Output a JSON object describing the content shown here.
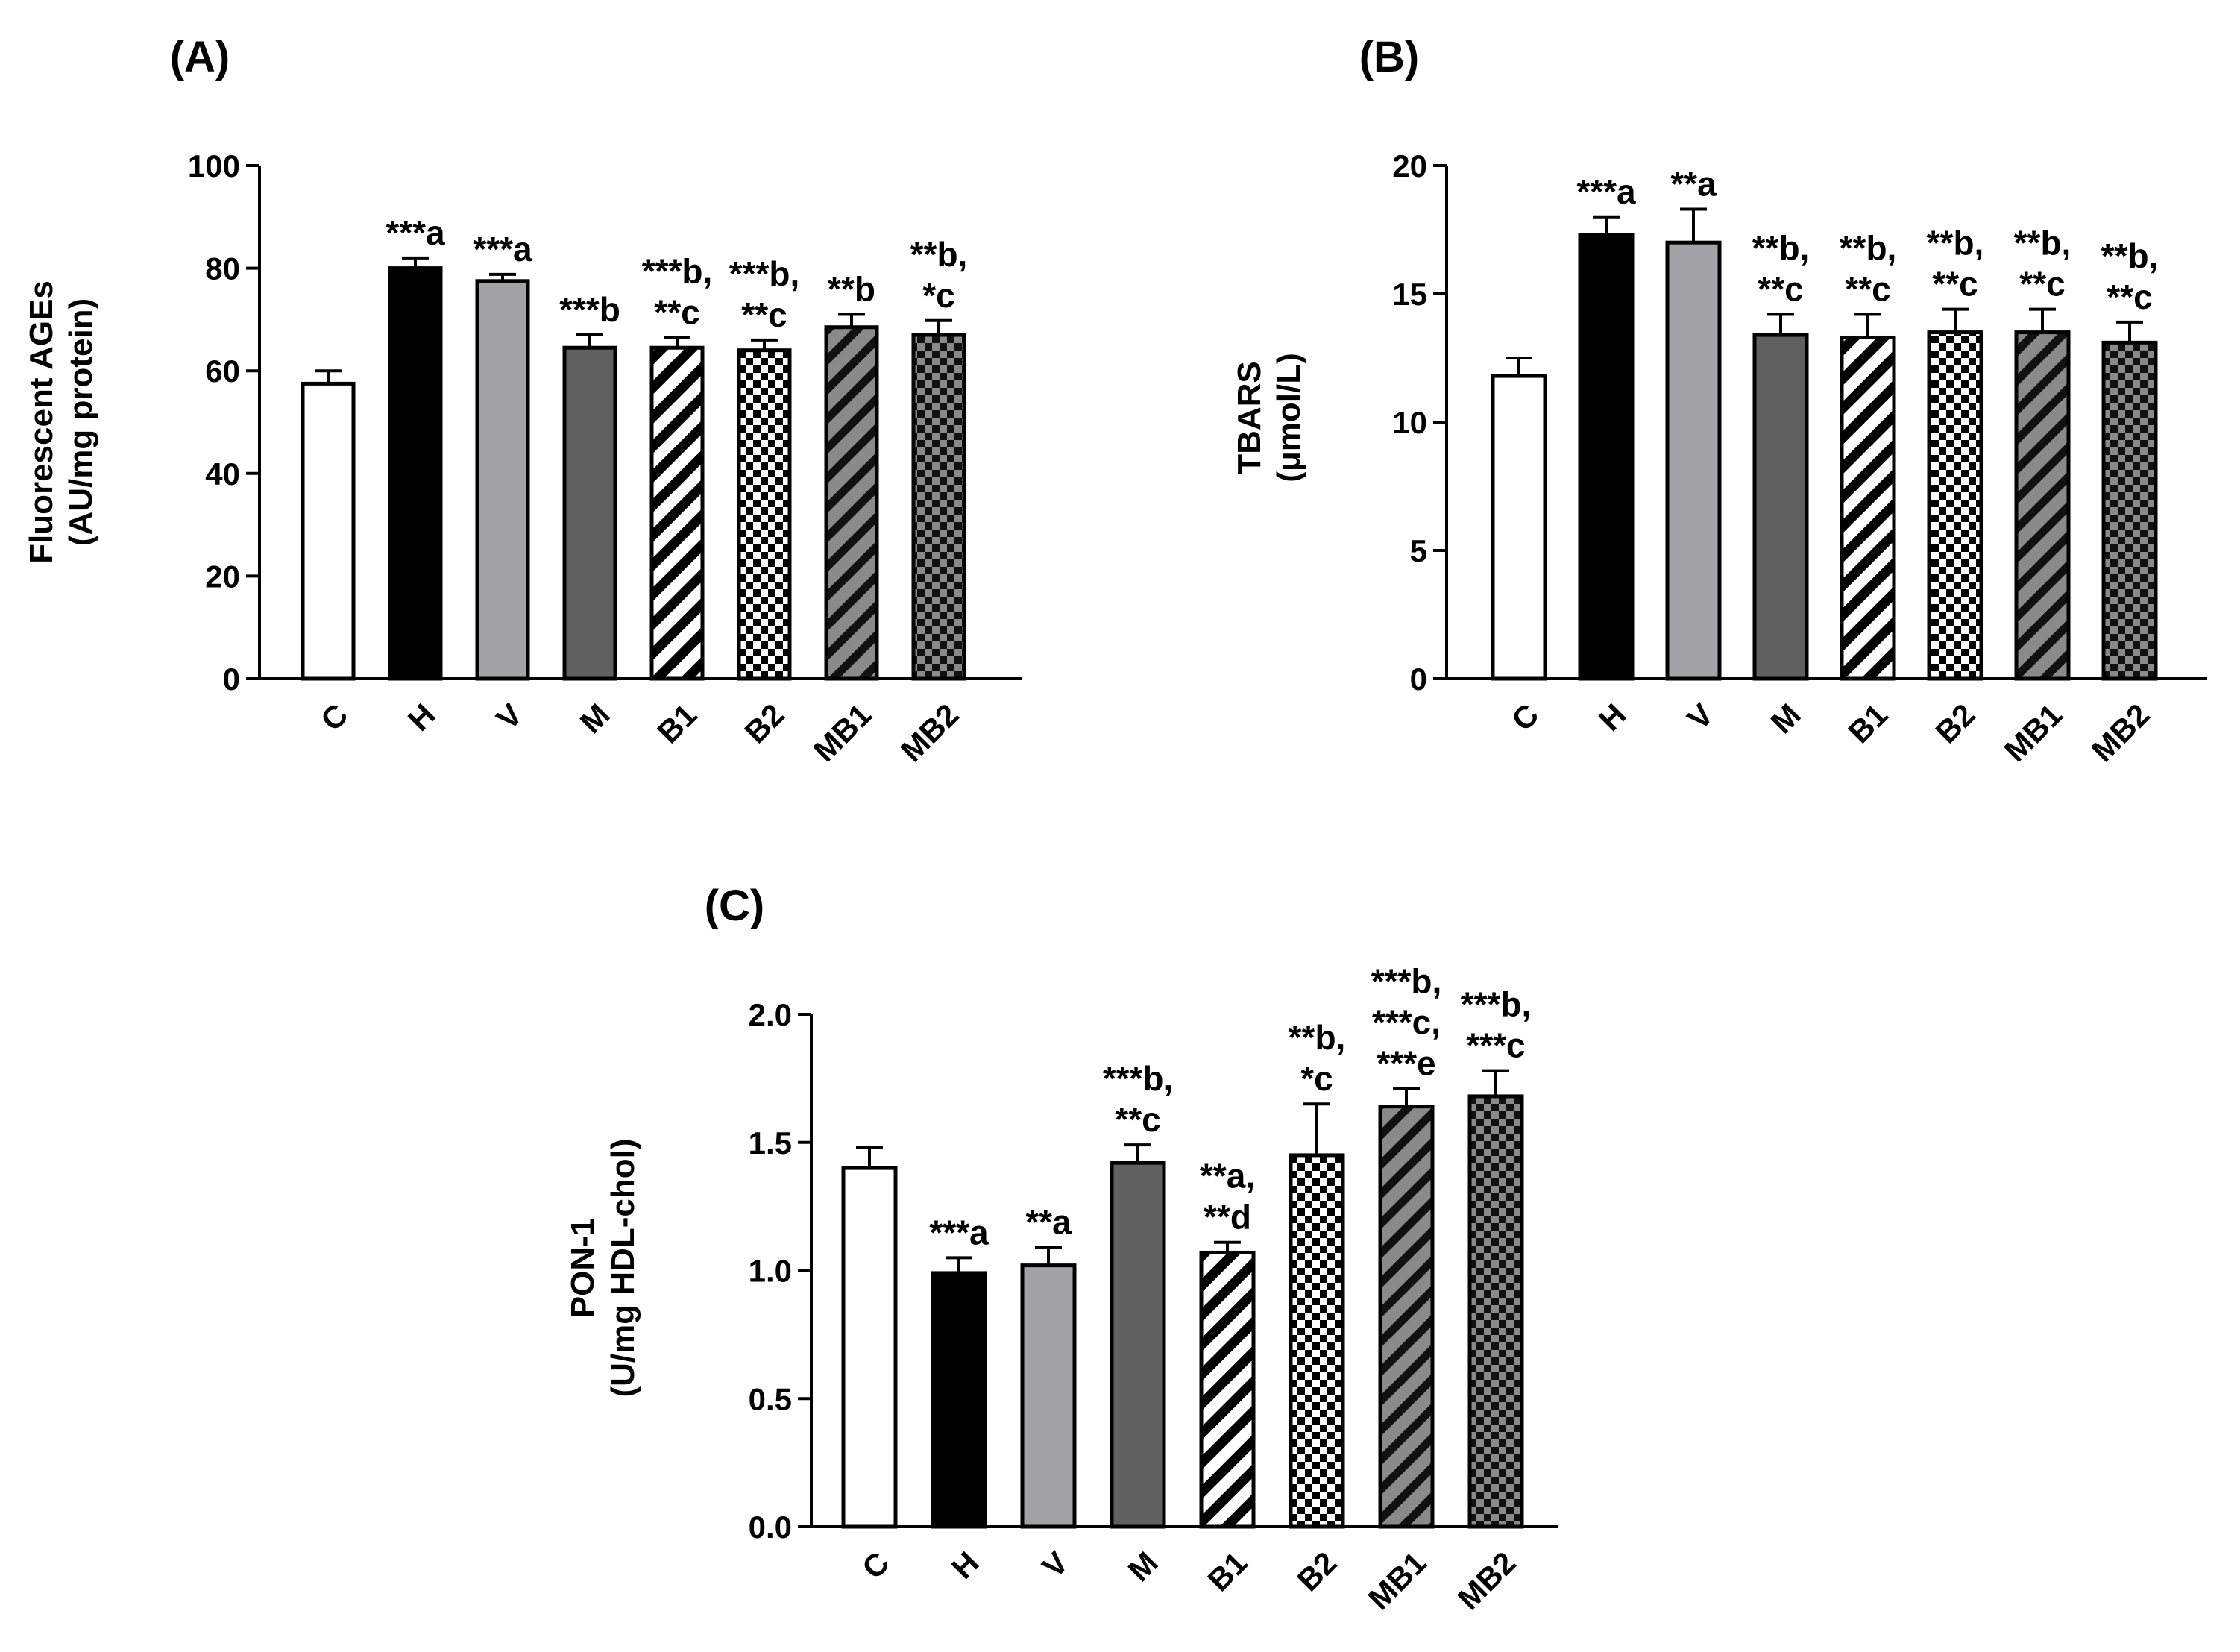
{
  "chart_data": [
    {
      "panel": "(A)",
      "type": "bar",
      "ylabel": [
        "Fluorescent AGEs",
        "(AU/mg protein)"
      ],
      "ylim": [
        0,
        100
      ],
      "yticks": [
        0,
        20,
        40,
        60,
        80,
        100
      ],
      "categories": [
        "C",
        "H",
        "V",
        "M",
        "B1",
        "B2",
        "MB1",
        "MB2"
      ],
      "values": [
        57.5,
        80.0,
        77.5,
        64.5,
        64.5,
        64.0,
        68.5,
        67.0
      ],
      "errors": [
        2.5,
        2.0,
        1.3,
        2.5,
        2.0,
        2.0,
        2.5,
        2.8
      ],
      "annotations": [
        [],
        [
          "***a"
        ],
        [
          "***a"
        ],
        [
          "***b"
        ],
        [
          "***b,",
          "**c"
        ],
        [
          "***b,",
          "**c"
        ],
        [
          "**b"
        ],
        [
          "**b,",
          "*c"
        ]
      ]
    },
    {
      "panel": "(B)",
      "type": "bar",
      "ylabel": [
        "TBARS",
        "(μmol/L)"
      ],
      "ylim": [
        0,
        20
      ],
      "yticks": [
        0,
        5,
        10,
        15,
        20
      ],
      "categories": [
        "C",
        "H",
        "V",
        "M",
        "B1",
        "B2",
        "MB1",
        "MB2"
      ],
      "values": [
        11.8,
        17.3,
        17.0,
        13.4,
        13.3,
        13.5,
        13.5,
        13.1
      ],
      "errors": [
        0.7,
        0.7,
        1.3,
        0.8,
        0.9,
        0.9,
        0.9,
        0.8
      ],
      "annotations": [
        [],
        [
          "***a"
        ],
        [
          "**a"
        ],
        [
          "**b,",
          "**c"
        ],
        [
          "**b,",
          "**c"
        ],
        [
          "**b,",
          "**c"
        ],
        [
          "**b,",
          "**c"
        ],
        [
          "**b,",
          "**c"
        ]
      ]
    },
    {
      "panel": "(C)",
      "type": "bar",
      "ylabel": [
        "PON-1",
        "(U/mg HDL-chol)"
      ],
      "ylim": [
        0,
        2.0
      ],
      "yticks": [
        "0.0",
        "0.5",
        "1.0",
        "1.5",
        "2.0"
      ],
      "categories": [
        "C",
        "H",
        "V",
        "M",
        "B1",
        "B2",
        "MB1",
        "MB2"
      ],
      "values": [
        1.4,
        0.99,
        1.02,
        1.42,
        1.07,
        1.45,
        1.64,
        1.68
      ],
      "errors": [
        0.08,
        0.06,
        0.07,
        0.07,
        0.04,
        0.2,
        0.07,
        0.1
      ],
      "annotations": [
        [],
        [
          "***a"
        ],
        [
          "**a"
        ],
        [
          "***b,",
          "**c"
        ],
        [
          "**a,",
          "**d"
        ],
        [
          "**b,",
          "*c"
        ],
        [
          "***b,",
          "***c,",
          "***e"
        ],
        [
          "***b,",
          "***c"
        ]
      ]
    }
  ],
  "bar_styles": [
    {
      "fill": "#ffffff",
      "pattern": "none"
    },
    {
      "fill": "#000000",
      "pattern": "none"
    },
    {
      "fill": "#a3a3a6",
      "pattern": "none"
    },
    {
      "fill": "#606060",
      "pattern": "none"
    },
    {
      "fill": "#ffffff",
      "pattern": "stripes-white-black"
    },
    {
      "fill": "#ffffff",
      "pattern": "checker-white-black"
    },
    {
      "fill": "#808080",
      "pattern": "stripes-grey-black"
    },
    {
      "fill": "#808080",
      "pattern": "checker-grey-black"
    }
  ]
}
